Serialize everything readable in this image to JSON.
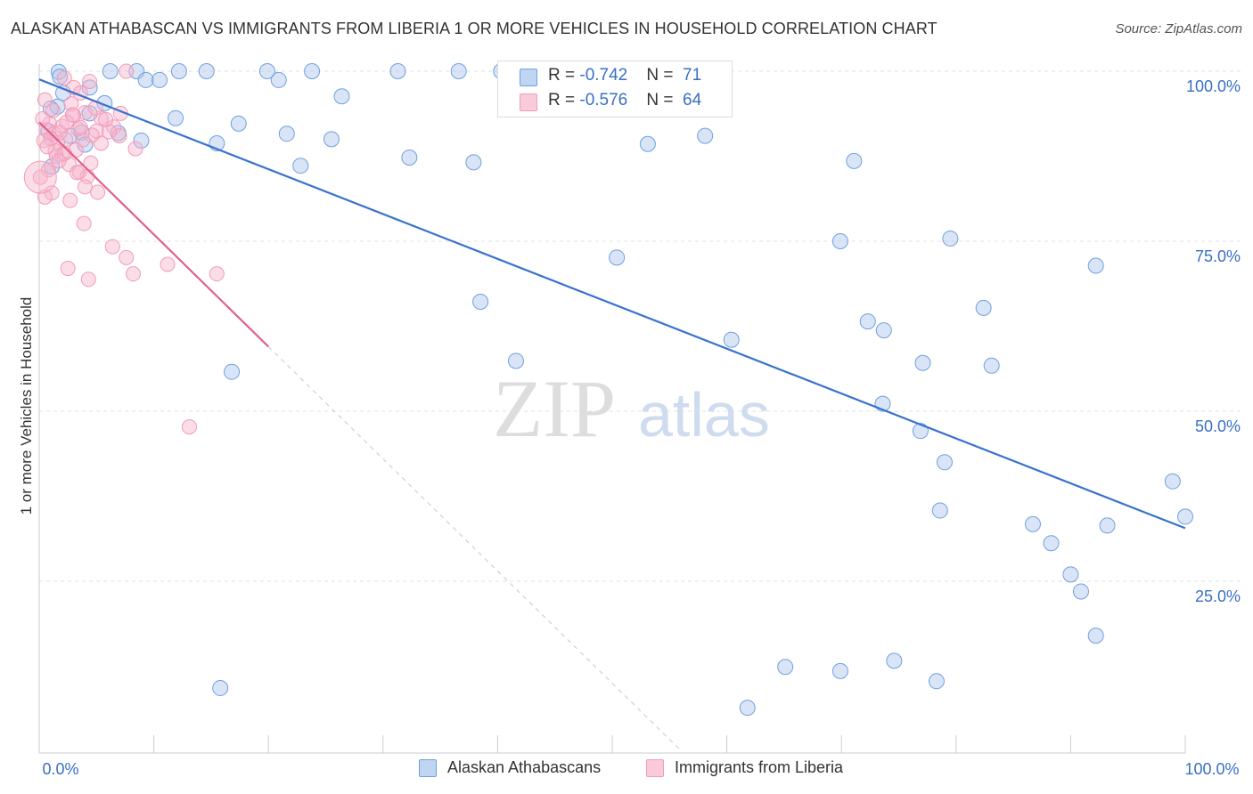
{
  "title": "ALASKAN ATHABASCAN VS IMMIGRANTS FROM LIBERIA 1 OR MORE VEHICLES IN HOUSEHOLD CORRELATION CHART",
  "source": "Source: ZipAtlas.com",
  "watermark": {
    "zip": "ZIP",
    "atlas": "atlas"
  },
  "legend": {
    "r_label": "R = ",
    "n_label": "N = ",
    "series": [
      {
        "r": "-0.742",
        "n": "71"
      },
      {
        "r": "-0.576",
        "n": "64"
      }
    ]
  },
  "bottom_legend": [
    "Alaskan Athabascans",
    "Immigrants from Liberia"
  ],
  "chart_data": {
    "type": "scatter",
    "title": "ALASKAN ATHABASCAN VS IMMIGRANTS FROM LIBERIA 1 OR MORE VEHICLES IN HOUSEHOLD CORRELATION CHART",
    "xlabel": "",
    "ylabel": "1 or more Vehicles in Household",
    "xlim": [
      0,
      100
    ],
    "ylim": [
      0,
      102
    ],
    "x_tick_labels": [
      "0.0%",
      "100.0%"
    ],
    "y_ticks": [
      25,
      50,
      75,
      100
    ],
    "y_tick_labels": [
      "25.0%",
      "50.0%",
      "75.0%",
      "100.0%"
    ],
    "grid": true,
    "legend_position": "top-center",
    "colors": {
      "blue": "#6fa0dc",
      "blue_line": "#3a72cc",
      "pink": "#f29bb8",
      "pink_line": "#e0608c",
      "tick_label": "#3a6fc4"
    },
    "series": [
      {
        "name": "Alaskan Athabascans",
        "color": "#6fa0dc",
        "trend": {
          "x1": 0,
          "y1": 98.8,
          "x2": 100,
          "y2": 32.8
        },
        "points": [
          [
            6.2,
            100
          ],
          [
            8.5,
            100
          ],
          [
            12.2,
            100
          ],
          [
            14.6,
            100
          ],
          [
            19.9,
            100
          ],
          [
            23.8,
            100
          ],
          [
            31.3,
            100
          ],
          [
            36.6,
            100
          ],
          [
            40.3,
            100
          ],
          [
            42.8,
            100
          ],
          [
            1.7,
            99.9
          ],
          [
            1.8,
            99.2
          ],
          [
            9.3,
            98.7
          ],
          [
            10.5,
            98.7
          ],
          [
            20.9,
            98.7
          ],
          [
            4.4,
            97.6
          ],
          [
            2.1,
            96.8
          ],
          [
            26.4,
            96.3
          ],
          [
            1.6,
            94.8
          ],
          [
            5.7,
            95.3
          ],
          [
            1.0,
            94.5
          ],
          [
            4.4,
            93.8
          ],
          [
            11.9,
            93.1
          ],
          [
            17.4,
            92.3
          ],
          [
            0.8,
            91.2
          ],
          [
            3.7,
            91.0
          ],
          [
            6.9,
            90.9
          ],
          [
            21.6,
            90.8
          ],
          [
            2.7,
            90.5
          ],
          [
            8.9,
            89.8
          ],
          [
            25.5,
            90.0
          ],
          [
            15.5,
            89.4
          ],
          [
            4.0,
            89.2
          ],
          [
            53.1,
            89.3
          ],
          [
            58.1,
            90.5
          ],
          [
            32.3,
            87.3
          ],
          [
            37.9,
            86.6
          ],
          [
            22.8,
            86.1
          ],
          [
            71.1,
            86.8
          ],
          [
            1.1,
            86.0
          ],
          [
            69.9,
            75.0
          ],
          [
            79.5,
            75.4
          ],
          [
            50.4,
            72.6
          ],
          [
            92.2,
            71.4
          ],
          [
            38.5,
            66.1
          ],
          [
            82.4,
            65.2
          ],
          [
            72.3,
            63.2
          ],
          [
            73.7,
            61.9
          ],
          [
            60.4,
            60.5
          ],
          [
            41.6,
            57.4
          ],
          [
            77.1,
            57.1
          ],
          [
            83.1,
            56.7
          ],
          [
            16.8,
            55.8
          ],
          [
            73.6,
            51.1
          ],
          [
            76.9,
            47.1
          ],
          [
            79.0,
            42.5
          ],
          [
            98.9,
            39.7
          ],
          [
            100,
            34.5
          ],
          [
            78.6,
            35.4
          ],
          [
            86.7,
            33.4
          ],
          [
            93.2,
            33.2
          ],
          [
            88.3,
            30.6
          ],
          [
            90.0,
            26.0
          ],
          [
            90.9,
            23.5
          ],
          [
            92.2,
            17.0
          ],
          [
            65.1,
            12.4
          ],
          [
            69.9,
            11.8
          ],
          [
            74.6,
            13.3
          ],
          [
            78.3,
            10.3
          ],
          [
            15.8,
            9.3
          ],
          [
            61.8,
            6.4
          ]
        ]
      },
      {
        "name": "Immigrants from Liberia",
        "color": "#f29bb8",
        "trend": {
          "x1": 0,
          "y1": 92.5,
          "x2": 20,
          "y2": 59.5
        },
        "points": [
          [
            4.4,
            98.5
          ],
          [
            7.6,
            100
          ],
          [
            2.2,
            99.0
          ],
          [
            3.0,
            97.6
          ],
          [
            3.6,
            96.8
          ],
          [
            0.5,
            95.8
          ],
          [
            2.8,
            95.2
          ],
          [
            1.2,
            94.2
          ],
          [
            4.0,
            93.9
          ],
          [
            7.1,
            93.8
          ],
          [
            3.0,
            93.5
          ],
          [
            5.4,
            93.1
          ],
          [
            0.9,
            92.3
          ],
          [
            2.0,
            91.9
          ],
          [
            6.5,
            91.8
          ],
          [
            0.6,
            91.4
          ],
          [
            3.4,
            91.5
          ],
          [
            5.0,
            91.2
          ],
          [
            1.3,
            90.8
          ],
          [
            7.0,
            90.5
          ],
          [
            2.3,
            90.0
          ],
          [
            0.4,
            89.8
          ],
          [
            1.6,
            89.5
          ],
          [
            5.4,
            89.4
          ],
          [
            3.8,
            89.9
          ],
          [
            8.4,
            88.6
          ],
          [
            2.0,
            87.8
          ],
          [
            1.5,
            87.5
          ],
          [
            2.6,
            86.3
          ],
          [
            0.8,
            85.5
          ],
          [
            3.5,
            85.2
          ],
          [
            4.2,
            84.5
          ],
          [
            0.1,
            84.4
          ],
          [
            5.1,
            82.2
          ],
          [
            1.1,
            82.1
          ],
          [
            0.5,
            81.5
          ],
          [
            2.7,
            81.0
          ],
          [
            3.3,
            85.1
          ],
          [
            4.0,
            83.0
          ],
          [
            4.5,
            86.5
          ],
          [
            3.9,
            77.6
          ],
          [
            6.4,
            74.2
          ],
          [
            7.6,
            72.6
          ],
          [
            11.2,
            71.6
          ],
          [
            2.5,
            71.0
          ],
          [
            15.5,
            70.2
          ],
          [
            8.2,
            70.2
          ],
          [
            4.3,
            69.4
          ],
          [
            13.1,
            47.7
          ],
          [
            1.8,
            91.0
          ],
          [
            2.4,
            92.5
          ],
          [
            0.3,
            93.0
          ],
          [
            3.2,
            88.4
          ],
          [
            1.4,
            88.3
          ],
          [
            4.6,
            90.6
          ],
          [
            6.1,
            91.1
          ],
          [
            1.0,
            90.1
          ],
          [
            2.9,
            93.6
          ],
          [
            0.7,
            88.9
          ],
          [
            5.8,
            92.9
          ],
          [
            3.6,
            91.7
          ],
          [
            2.2,
            87.9
          ],
          [
            1.7,
            86.8
          ],
          [
            4.9,
            94.6
          ]
        ]
      }
    ]
  }
}
